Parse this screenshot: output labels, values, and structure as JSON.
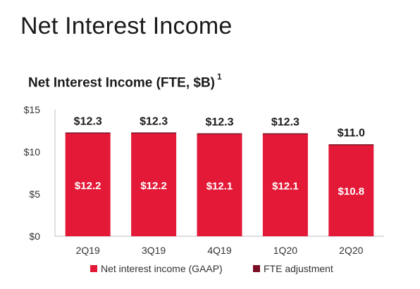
{
  "page": {
    "title": "Net Interest Income"
  },
  "chart_data": {
    "type": "bar",
    "stacked": true,
    "title": "Net Interest Income (FTE, $B)",
    "title_footnote": "1",
    "xlabel": "",
    "ylabel": "",
    "categories": [
      "2Q19",
      "3Q19",
      "4Q19",
      "1Q20",
      "2Q20"
    ],
    "series": [
      {
        "name": "Net interest income (GAAP)",
        "color": "#e31937",
        "values": [
          12.2,
          12.2,
          12.1,
          12.1,
          10.8
        ]
      },
      {
        "name": "FTE adjustment",
        "color": "#7a0e24",
        "values": [
          0.1,
          0.1,
          0.1,
          0.1,
          0.1
        ]
      }
    ],
    "inner_labels": [
      "$12.2",
      "$12.2",
      "$12.1",
      "$12.1",
      "$10.8"
    ],
    "total_labels": [
      "$12.3",
      "$12.3",
      "$12.3",
      "$12.3",
      "$11.0"
    ],
    "yticks": [
      0,
      5,
      10,
      15
    ],
    "ytick_labels": [
      "$0",
      "$5",
      "$10",
      "$15"
    ],
    "ylim": [
      0,
      15
    ],
    "grid": false,
    "legend_position": "bottom"
  }
}
